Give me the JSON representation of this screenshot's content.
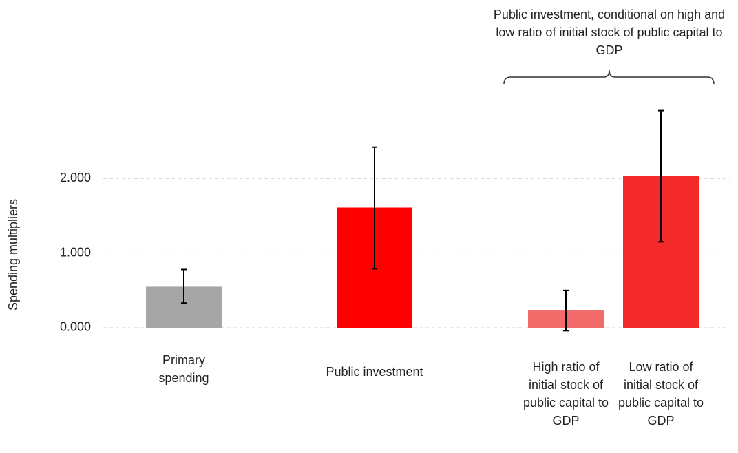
{
  "chart_data": {
    "type": "bar",
    "y_label": "Spending multipliers",
    "annotation": "Public investment, conditional on high and low ratio of initial stock of public capital to GDP",
    "categories": [
      "Primary spending",
      "Public investment",
      "High ratio of initial stock of public capital to GDP",
      "Low ratio of initial stock of public capital to GDP"
    ],
    "values": [
      0.55,
      1.61,
      0.23,
      2.03
    ],
    "lower": [
      0.33,
      0.79,
      -0.04,
      1.15
    ],
    "upper": [
      0.78,
      2.42,
      0.5,
      2.91
    ],
    "colors": [
      "#a6a6a6",
      "#ff0000",
      "#f26a6a",
      "#f42a2a"
    ],
    "ylim": [
      -0.3,
      3.1
    ],
    "yticks": [
      {
        "value": 0,
        "label": "0.000"
      },
      {
        "value": 1,
        "label": "1.000"
      },
      {
        "value": 2,
        "label": "2.000"
      }
    ],
    "grid": true
  }
}
